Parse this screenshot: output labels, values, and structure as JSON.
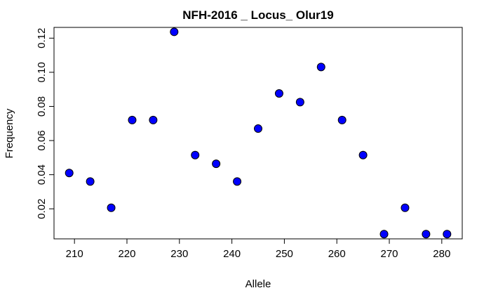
{
  "chart_data": {
    "type": "scatter",
    "title": "NFH-2016 _ Locus_ Olur19",
    "xlabel": "Allele",
    "ylabel": "Frequency",
    "xlim": [
      206.1,
      283.9
    ],
    "ylim": [
      0.0024,
      0.1263
    ],
    "x_ticks": [
      210,
      220,
      230,
      240,
      250,
      260,
      270,
      280
    ],
    "x_tick_labels": [
      "210",
      "220",
      "230",
      "240",
      "250",
      "260",
      "270",
      "280"
    ],
    "y_ticks": [
      0.02,
      0.04,
      0.06,
      0.08,
      0.1,
      0.12
    ],
    "y_tick_labels": [
      "0.02",
      "0.04",
      "0.06",
      "0.08",
      "0.10",
      "0.12"
    ],
    "grid": false,
    "marker": {
      "shape": "circle",
      "fill": "#0000ff",
      "stroke": "#000000"
    },
    "x": [
      209,
      213,
      217,
      221,
      225,
      229,
      233,
      237,
      241,
      245,
      249,
      253,
      257,
      261,
      265,
      269,
      273,
      277,
      281
    ],
    "y": [
      0.041,
      0.036,
      0.0206,
      0.072,
      0.072,
      0.1237,
      0.0515,
      0.0464,
      0.036,
      0.067,
      0.0876,
      0.0825,
      0.1031,
      0.072,
      0.0515,
      0.0052,
      0.0206,
      0.0052,
      0.0052
    ]
  }
}
